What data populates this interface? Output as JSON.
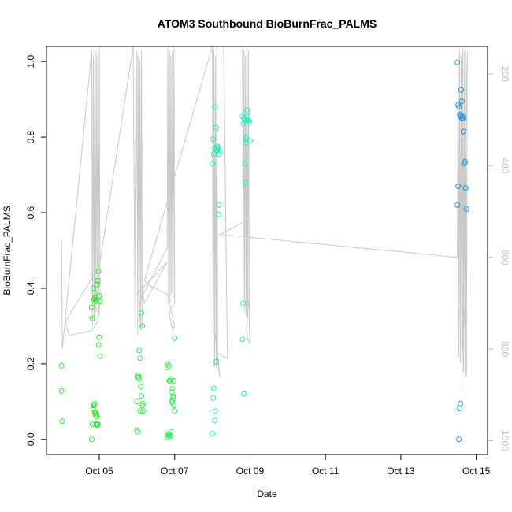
{
  "chart_data": {
    "type": "scatter",
    "title": "ATOM3 Southbound BioBurnFrac_PALMS",
    "xlabel": "Date",
    "ylabel": "BioBurnFrac_PALMS",
    "xlim": [
      3.6,
      15.3
    ],
    "ylim": [
      -0.04,
      1.04
    ],
    "x_ticks": [
      {
        "value": 5,
        "label": "Oct 05"
      },
      {
        "value": 7,
        "label": "Oct 07"
      },
      {
        "value": 9,
        "label": "Oct 09"
      },
      {
        "value": 11,
        "label": "Oct 11"
      },
      {
        "value": 13,
        "label": "Oct 13"
      },
      {
        "value": 15,
        "label": "Oct 15"
      }
    ],
    "y_ticks": [
      {
        "value": 0.0,
        "label": "0.0"
      },
      {
        "value": 0.2,
        "label": "0.2"
      },
      {
        "value": 0.4,
        "label": "0.4"
      },
      {
        "value": 0.6,
        "label": "0.6"
      },
      {
        "value": 0.8,
        "label": "0.8"
      },
      {
        "value": 1.0,
        "label": "1.0"
      }
    ],
    "secondary_axis": {
      "side": "right",
      "reversed": true,
      "range": [
        1030,
        140
      ],
      "ticks": [
        {
          "value": 200,
          "label": "200"
        },
        {
          "value": 400,
          "label": "400"
        },
        {
          "value": 600,
          "label": "600"
        },
        {
          "value": 800,
          "label": "800"
        },
        {
          "value": 1000,
          "label": "1000"
        }
      ],
      "color": "#bdbdbd"
    },
    "altitude_trace": {
      "color": "#c8c8c8",
      "x": [
        4.0,
        4.02,
        4.8,
        4.82,
        4.84,
        4.86,
        4.88,
        4.9,
        4.92,
        4.94,
        4.96,
        4.98,
        5.0,
        5.02,
        4.99,
        4.9,
        4.85,
        4.86,
        4.88,
        4.9,
        4.92,
        4.94,
        4.96,
        4.97,
        4.98,
        5.0,
        4.95,
        4.8,
        4.2,
        4.1,
        5.0,
        5.9,
        5.95,
        6.0,
        6.02,
        6.04,
        6.06,
        6.08,
        6.1,
        6.12,
        6.14,
        6.16,
        6.1,
        6.05,
        6.08,
        6.12,
        6.15,
        6.16,
        6.2,
        6.8,
        6.0,
        6.1,
        6.8,
        6.82,
        6.84,
        6.86,
        6.88,
        6.9,
        6.92,
        6.94,
        6.96,
        6.98,
        7.0,
        6.9,
        6.85,
        6.9,
        6.95,
        7.0,
        6.8,
        6.3,
        6.2,
        8.0,
        8.02,
        8.04,
        8.06,
        8.08,
        8.1,
        8.12,
        8.14,
        8.16,
        8.2,
        8.1,
        8.05,
        8.08,
        8.1,
        8.12,
        8.15,
        8.4,
        8.3,
        8.0,
        8.8,
        8.82,
        8.84,
        8.86,
        8.88,
        8.9,
        8.92,
        8.94,
        8.96,
        8.98,
        9.0,
        8.95,
        8.9,
        8.92,
        8.94,
        8.96,
        8.98,
        9.0,
        8.9,
        8.9,
        8.2,
        14.5,
        14.52,
        14.54,
        14.56,
        14.58,
        14.6,
        14.62,
        14.64,
        14.66,
        14.68,
        14.7,
        14.72,
        14.74,
        14.76,
        14.62,
        14.64,
        14.66,
        14.68,
        14.7,
        14.72
      ],
      "y": [
        560,
        800,
        150,
        750,
        160,
        740,
        170,
        720,
        150,
        700,
        160,
        690,
        140,
        700,
        720,
        710,
        690,
        650,
        680,
        660,
        690,
        670,
        700,
        680,
        700,
        720,
        740,
        760,
        770,
        740,
        620,
        140,
        780,
        150,
        770,
        160,
        760,
        170,
        760,
        150,
        740,
        760,
        740,
        720,
        700,
        690,
        660,
        680,
        700,
        610,
        680,
        690,
        580,
        140,
        700,
        150,
        700,
        160,
        680,
        150,
        690,
        140,
        700,
        710,
        720,
        740,
        760,
        750,
        680,
        660,
        650,
        140,
        840,
        150,
        840,
        160,
        840,
        140,
        820,
        840,
        860,
        780,
        760,
        770,
        790,
        800,
        810,
        820,
        140,
        140,
        140,
        710,
        150,
        720,
        160,
        730,
        140,
        730,
        150,
        750,
        790,
        780,
        760,
        740,
        720,
        700,
        690,
        680,
        660,
        520,
        550,
        600,
        140,
        820,
        150,
        830,
        160,
        840,
        140,
        850,
        150,
        860,
        140,
        860,
        150,
        880,
        660,
        700,
        730,
        760,
        800
      ]
    },
    "series": [
      {
        "color": "#22ee22",
        "x": [
          4.0,
          4.0,
          4.02,
          4.8,
          4.82,
          4.84,
          4.86,
          4.88,
          4.9,
          4.92,
          4.94,
          4.96,
          4.98,
          5.0,
          5.02,
          4.8,
          4.82,
          4.84,
          4.86,
          4.88,
          4.9,
          4.92,
          4.94,
          4.96,
          4.98,
          5.0,
          5.02,
          4.86,
          4.88,
          4.9,
          4.92,
          4.94
        ],
        "y": [
          0.195,
          0.128,
          0.048,
          0.0,
          0.04,
          0.08,
          0.09,
          0.095,
          0.07,
          0.065,
          0.06,
          0.04,
          0.25,
          0.27,
          0.22,
          0.35,
          0.32,
          0.4,
          0.37,
          0.375,
          0.365,
          0.37,
          0.41,
          0.42,
          0.445,
          0.38,
          0.365,
          0.09,
          0.07,
          0.065,
          0.04,
          0.038
        ]
      },
      {
        "color": "#33ee55",
        "x": [
          6.0,
          6.02,
          6.04,
          6.06,
          6.08,
          6.1,
          6.12,
          6.14,
          6.16,
          6.0,
          6.02,
          6.04,
          6.06,
          6.08,
          6.1,
          6.12,
          6.14,
          6.16,
          6.8,
          6.82,
          6.84,
          6.86,
          6.88,
          6.9,
          6.92,
          6.94,
          6.96,
          6.98,
          7.0,
          6.8,
          6.82,
          6.84,
          6.86,
          6.88,
          6.9,
          6.92,
          6.94,
          6.96,
          6.98,
          7.0
        ],
        "y": [
          0.1,
          0.165,
          0.165,
          0.235,
          0.215,
          0.14,
          0.115,
          0.09,
          0.075,
          0.025,
          0.02,
          0.17,
          0.16,
          0.075,
          0.14,
          0.335,
          0.3,
          0.095,
          0.19,
          0.2,
          0.195,
          0.155,
          0.155,
          0.16,
          0.125,
          0.135,
          0.115,
          0.09,
          0.075,
          0.005,
          0.01,
          0.015,
          0.01,
          0.008,
          0.02,
          0.098,
          0.103,
          0.11,
          0.155,
          0.268
        ]
      },
      {
        "color": "#22eebb",
        "x": [
          8.0,
          8.02,
          8.04,
          8.06,
          8.08,
          8.1,
          8.12,
          8.14,
          8.16,
          8.18,
          8.0,
          8.02,
          8.04,
          8.06,
          8.08,
          8.1,
          8.12,
          8.14,
          8.16,
          8.18,
          8.2,
          8.8,
          8.82,
          8.84,
          8.86,
          8.88,
          8.9,
          8.92,
          8.94,
          8.96,
          8.98,
          9.0,
          8.8,
          8.82,
          8.84,
          8.86,
          8.88,
          8.9,
          8.92
        ],
        "y": [
          0.73,
          0.795,
          0.755,
          0.77,
          0.88,
          0.825,
          0.775,
          0.765,
          0.595,
          0.62,
          0.015,
          0.11,
          0.135,
          0.05,
          0.075,
          0.205,
          0.765,
          0.775,
          0.77,
          0.755,
          0.76,
          0.855,
          0.835,
          0.85,
          0.845,
          0.795,
          0.785,
          0.87,
          0.855,
          0.845,
          0.84,
          0.79,
          0.265,
          0.36,
          0.12,
          0.73,
          0.68,
          0.8,
          0.845
        ]
      },
      {
        "color": "#2299dd",
        "x": [
          14.5,
          14.52,
          14.54,
          14.56,
          14.58,
          14.6,
          14.62,
          14.64,
          14.66,
          14.68,
          14.7,
          14.72,
          14.74,
          14.5,
          14.52,
          14.54,
          14.56,
          14.58,
          14.6,
          14.62,
          14.64,
          14.66,
          14.68,
          14.7,
          14.72,
          14.74
        ],
        "y": [
          0.998,
          0.885,
          0.88,
          0.86,
          0.855,
          0.925,
          0.895,
          0.855,
          0.815,
          0.73,
          0.735,
          0.665,
          0.61,
          0.62,
          0.67,
          0.0,
          0.082,
          0.095,
          0.855,
          0.85,
          0.85,
          0.815,
          0.73,
          0.735,
          0.665,
          0.61
        ]
      }
    ]
  }
}
